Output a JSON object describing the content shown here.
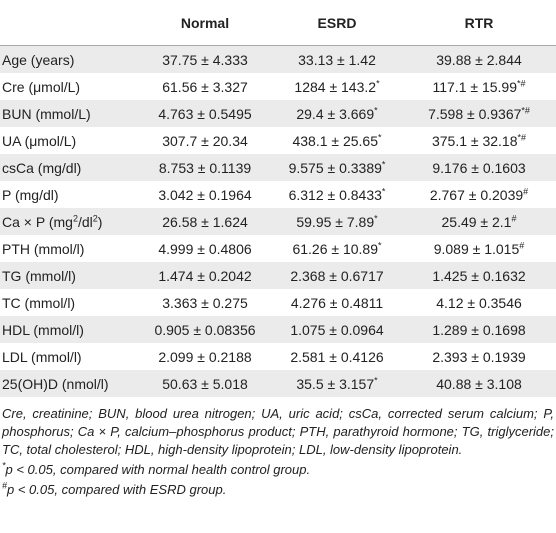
{
  "table": {
    "header": [
      "",
      "Normal",
      "ESRD",
      "RTR"
    ],
    "rows": [
      [
        [
          "Age (years)"
        ],
        [
          "37.75 ± 4.333"
        ],
        [
          "33.13 ± 1.42"
        ],
        [
          "39.88 ± 2.844"
        ]
      ],
      [
        [
          "Cre (μmol/L)"
        ],
        [
          "61.56 ± 3.327"
        ],
        [
          "1284 ± 143.2",
          "*"
        ],
        [
          "117.1 ± 15.99",
          "*#"
        ]
      ],
      [
        [
          "BUN (mmol/L)"
        ],
        [
          "4.763 ± 0.5495"
        ],
        [
          "29.4 ± 3.669",
          "*"
        ],
        [
          "7.598 ± 0.9367",
          "*#"
        ]
      ],
      [
        [
          "UA (μmol/L)"
        ],
        [
          "307.7 ± 20.34"
        ],
        [
          "438.1 ± 25.65",
          "*"
        ],
        [
          "375.1 ± 32.18",
          "*#"
        ]
      ],
      [
        [
          "csCa (mg/dl)"
        ],
        [
          "8.753 ± 0.1139"
        ],
        [
          "9.575 ± 0.3389",
          "*"
        ],
        [
          "9.176 ± 0.1603"
        ]
      ],
      [
        [
          "P (mg/dl)"
        ],
        [
          "3.042 ± 0.1964"
        ],
        [
          "6.312 ± 0.8433",
          "*"
        ],
        [
          "2.767 ± 0.2039",
          "#"
        ]
      ],
      [
        [
          "Ca × P (mg",
          "2",
          "/dl",
          "2",
          ")"
        ],
        [
          "26.58 ± 1.624"
        ],
        [
          "59.95 ± 7.89",
          "*"
        ],
        [
          "25.49 ± 2.1",
          "#"
        ]
      ],
      [
        [
          "PTH (mmol/l)"
        ],
        [
          "4.999 ± 0.4806"
        ],
        [
          "61.26 ± 10.89",
          "*"
        ],
        [
          "9.089 ± 1.015",
          "#"
        ]
      ],
      [
        [
          "TG (mmol/l)"
        ],
        [
          "1.474 ± 0.2042"
        ],
        [
          "2.368 ± 0.6717"
        ],
        [
          "1.425 ± 0.1632"
        ]
      ],
      [
        [
          "TC (mmol/l)"
        ],
        [
          "3.363 ± 0.275"
        ],
        [
          "4.276 ± 0.4811"
        ],
        [
          "4.12 ± 0.3546"
        ]
      ],
      [
        [
          "HDL (mmol/l)"
        ],
        [
          "0.905 ± 0.08356"
        ],
        [
          "1.075 ± 0.0964"
        ],
        [
          "1.289 ± 0.1698"
        ]
      ],
      [
        [
          "LDL (mmol/l)"
        ],
        [
          "2.099 ± 0.2188"
        ],
        [
          "2.581 ± 0.4126"
        ],
        [
          "2.393 ± 0.1939"
        ]
      ],
      [
        [
          "25(OH)D (nmol/l)"
        ],
        [
          "50.63 ± 5.018"
        ],
        [
          "35.5 ± 3.157",
          "*"
        ],
        [
          "40.88 ± 3.108"
        ]
      ]
    ]
  },
  "notes": {
    "abbreviations": "Cre, creatinine; BUN, blood urea nitrogen; UA, uric acid; csCa, corrected serum calcium; P, phosphorus; Ca × P, calcium–phosphorus product; PTH, parathyroid hormone; TG, triglyceride; TC, total cholesterol; HDL, high-density lipoprotein; LDL, low-density lipoprotein.",
    "footnotes": [
      {
        "mark": "*",
        "text": "p < 0.05, compared with normal health control group."
      },
      {
        "mark": "#",
        "text": "p < 0.05, compared with ESRD group."
      }
    ]
  }
}
